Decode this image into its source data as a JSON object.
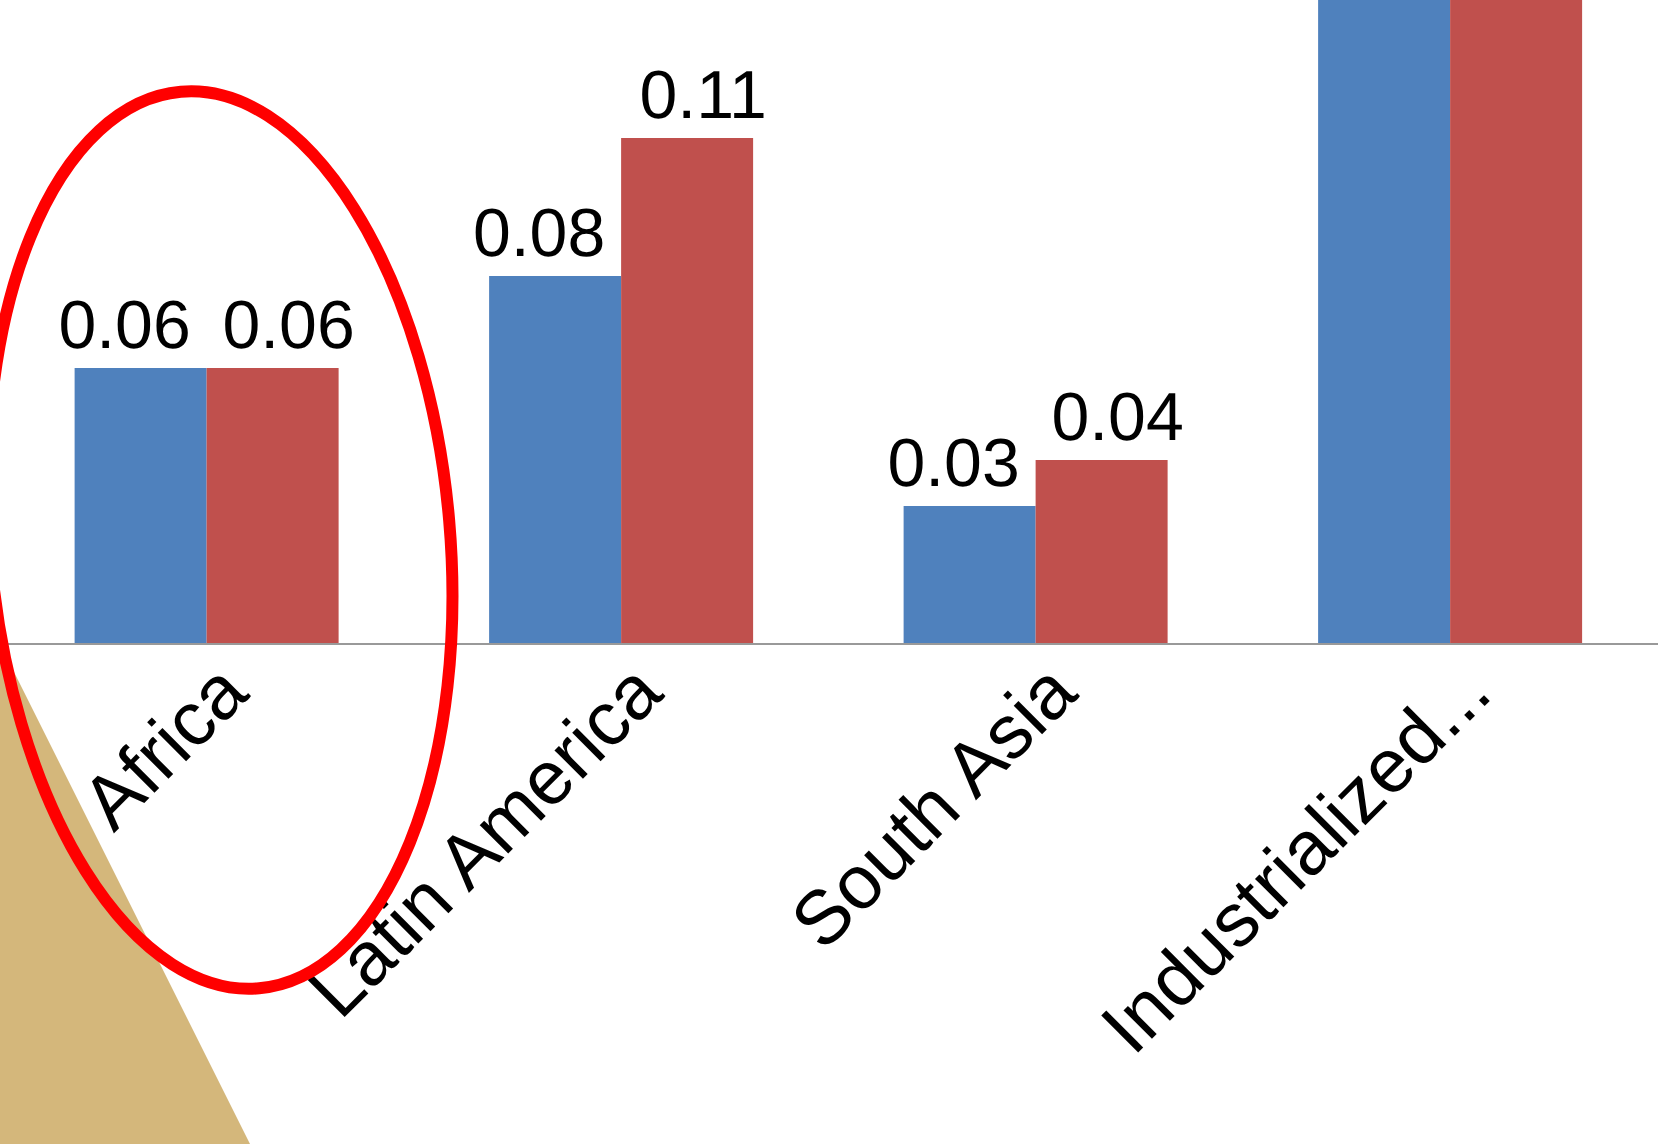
{
  "chart_data": {
    "type": "bar",
    "categories": [
      "Africa",
      "Latin America",
      "South Asia",
      "Industrialized..."
    ],
    "series": [
      {
        "color": "#4f81bd",
        "values": [
          0.06,
          0.08,
          0.03,
          0.14
        ],
        "value_labels": [
          "0.06",
          "0.08",
          "0.03",
          null
        ]
      },
      {
        "color": "#c0504d",
        "values": [
          0.06,
          0.11,
          0.04,
          0.14
        ],
        "value_labels": [
          "0.06",
          "0.11",
          "0.04",
          null
        ]
      }
    ],
    "ylim": [
      0,
      0.14
    ],
    "tick_labels": "x"
  }
}
